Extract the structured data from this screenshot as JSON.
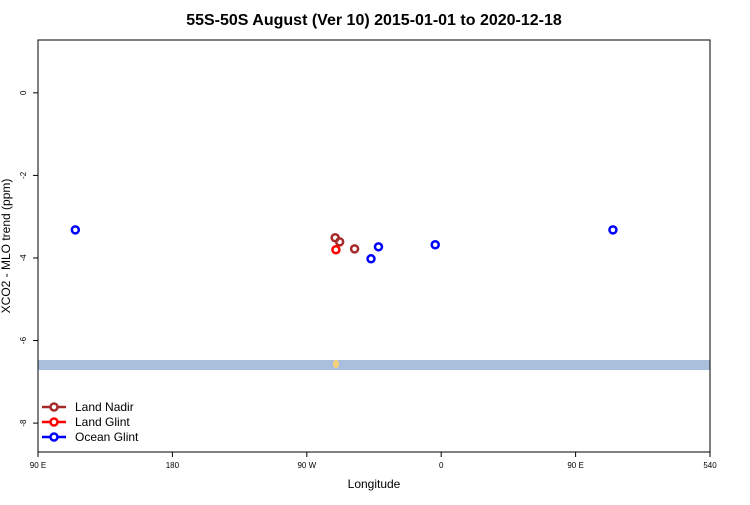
{
  "chart_data": {
    "type": "scatter",
    "title": "55S-50S August (Ver 10)   2015-01-01 to 2020-12-18",
    "x_label": "Longitude",
    "y_label": "XCO2 - MLO trend (ppm)",
    "xlim": [
      90,
      540
    ],
    "xticks": [
      {
        "value": 90,
        "label": "90 E"
      },
      180,
      {
        "value": 270,
        "label": "90 W"
      },
      {
        "value": 360,
        "label": "0"
      },
      {
        "value": 450,
        "label": "90 E"
      },
      540
    ],
    "ylim": [
      -8.7,
      1.28
    ],
    "yticks": [
      0,
      -2,
      -4,
      -6,
      -8
    ],
    "legend": "bottom-left",
    "series": [
      {
        "name": "Land Nadir",
        "color": "#a52a2a",
        "x": [
          289,
          292,
          302
        ],
        "values": [
          -3.51,
          -3.61,
          -3.78
        ]
      },
      {
        "name": "Land Glint",
        "color": "#ff0000",
        "x": [
          289.5
        ],
        "values": [
          -3.8
        ]
      },
      {
        "name": "Ocean Glint",
        "color": "#0000ff",
        "x": [
          115,
          313,
          318,
          356,
          475
        ],
        "values": [
          -3.32,
          -4.02,
          -3.73,
          -3.68,
          -3.32
        ]
      }
    ]
  }
}
